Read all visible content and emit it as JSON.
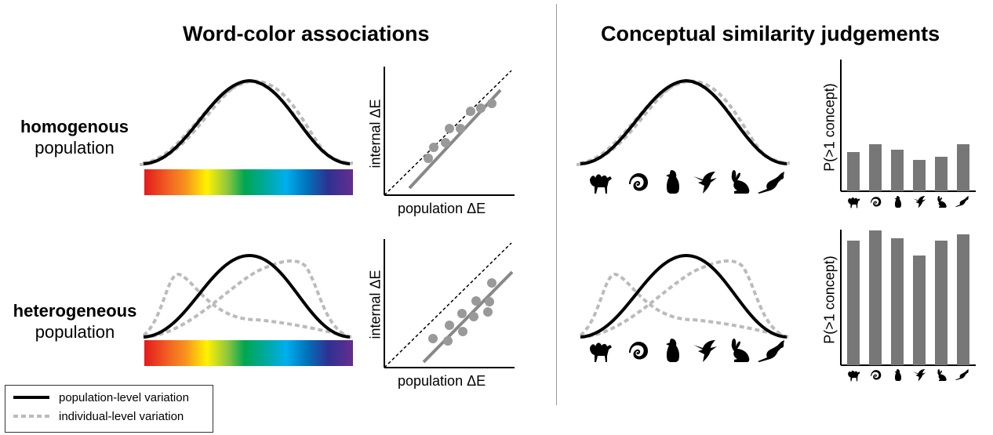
{
  "headings": {
    "left": "Word-color associations",
    "right": "Conceptual similarity judgements"
  },
  "rows": {
    "top": {
      "bold": "homogenous",
      "normal": "population"
    },
    "bottom": {
      "bold": "heterogeneous",
      "normal": "population"
    }
  },
  "scatter": {
    "xlabel": "population ΔE",
    "ylabel": "internal ΔE"
  },
  "bars": {
    "ylabel": "P(>1 concept)",
    "animals": [
      "camel-icon",
      "chameleon-icon",
      "penguin-icon",
      "hummingbird-icon",
      "rabbit-icon",
      "kangaroo-icon"
    ]
  },
  "legend": {
    "population": "population-level variation",
    "individual": "individual-level variation"
  },
  "colors": {
    "population_curve": "#000000",
    "individual_curve": "#bbbbbb",
    "bar_fill": "#777777",
    "scatter_point": "#999999",
    "fit_line": "#888888"
  }
}
